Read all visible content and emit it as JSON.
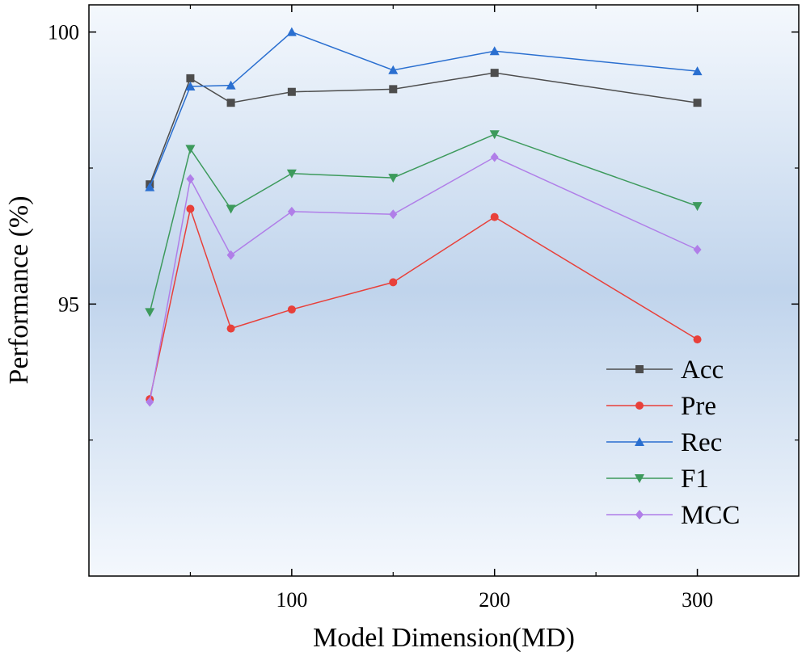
{
  "chart_data": {
    "type": "line",
    "title": "",
    "xlabel": "Model Dimension(MD)",
    "ylabel": "Performance (%)",
    "xlim": [
      0,
      350
    ],
    "ylim": [
      90,
      100.5
    ],
    "x_ticks": [
      100,
      200,
      300
    ],
    "x_minor_ticks": [
      50,
      150,
      250
    ],
    "y_ticks": [
      95,
      100
    ],
    "y_minor_ticks": [
      92.5,
      97.5
    ],
    "x_tick_labels": [
      "100",
      "200",
      "300"
    ],
    "y_tick_labels": [
      "95",
      "100"
    ],
    "legend_position": "lower-right",
    "grid": false,
    "x": [
      30,
      50,
      70,
      100,
      150,
      200,
      300
    ],
    "series": [
      {
        "name": "Acc",
        "color": "#4d4d4d",
        "marker": "square",
        "values": [
          97.2,
          99.15,
          98.7,
          98.9,
          98.95,
          99.25,
          98.7
        ]
      },
      {
        "name": "Pre",
        "color": "#e8403a",
        "marker": "circle",
        "values": [
          93.25,
          96.75,
          94.55,
          94.9,
          95.4,
          96.6,
          94.35
        ]
      },
      {
        "name": "Rec",
        "color": "#2a6fd0",
        "marker": "triangle-up",
        "values": [
          97.15,
          99.0,
          99.02,
          100.0,
          99.3,
          99.65,
          99.28
        ]
      },
      {
        "name": "F1",
        "color": "#3d9a5c",
        "marker": "triangle-down",
        "values": [
          94.85,
          97.85,
          96.75,
          97.4,
          97.32,
          98.12,
          96.8
        ]
      },
      {
        "name": "MCC",
        "color": "#b07ee8",
        "marker": "diamond",
        "values": [
          93.2,
          97.3,
          95.9,
          96.7,
          96.65,
          97.7,
          96.0
        ]
      }
    ]
  }
}
